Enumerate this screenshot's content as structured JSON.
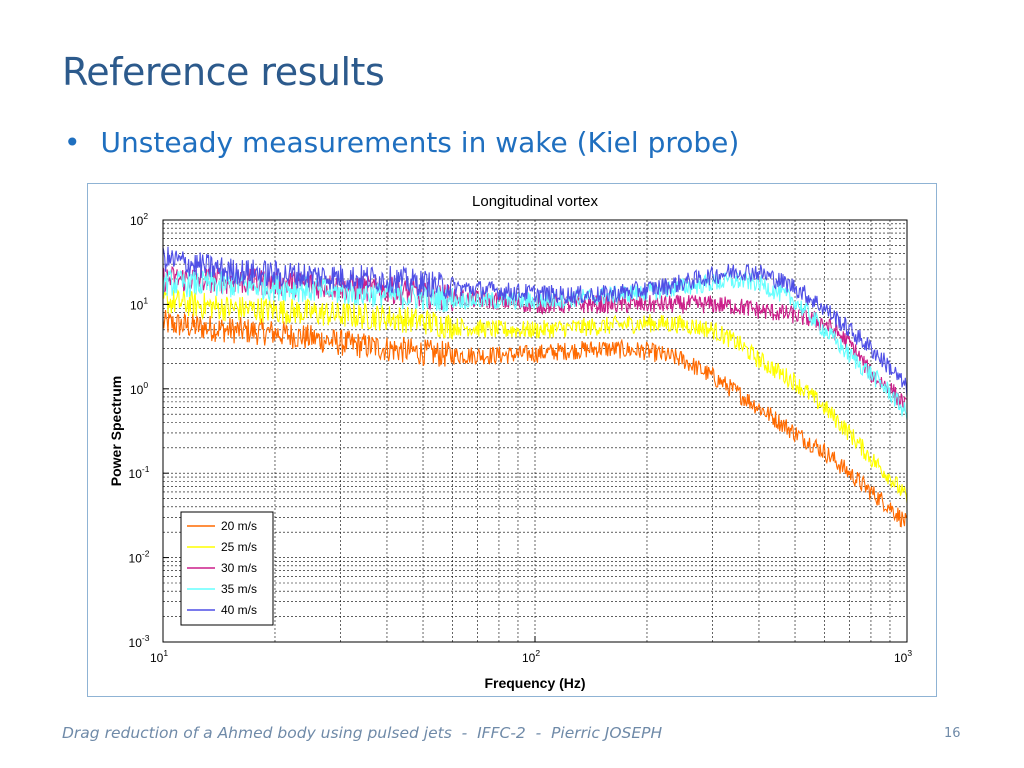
{
  "slide": {
    "title": "Reference results",
    "bullet": "Unsteady measurements in wake (Kiel probe)",
    "footer": "Drag reduction of a Ahmed body using pulsed jets  -  IFFC-2  -  Pierric JOSEPH",
    "page_number": "16"
  },
  "chart_data": {
    "type": "line",
    "title": "Longitudinal vortex",
    "xlabel": "Frequency (Hz)",
    "ylabel": "Power Spectrum",
    "xscale": "log",
    "yscale": "log",
    "xlim": [
      10,
      1000
    ],
    "ylim": [
      0.001,
      100
    ],
    "x_ticks": [
      {
        "base": "10",
        "exp": "1"
      },
      {
        "base": "10",
        "exp": "2"
      },
      {
        "base": "10",
        "exp": "3"
      }
    ],
    "y_ticks": [
      {
        "base": "10",
        "exp": "2"
      },
      {
        "base": "10",
        "exp": "1"
      },
      {
        "base": "10",
        "exp": "0"
      },
      {
        "base": "10",
        "exp": "-1"
      },
      {
        "base": "10",
        "exp": "-2"
      },
      {
        "base": "10",
        "exp": "-3"
      }
    ],
    "grid": true,
    "legend_position": "bottom-left",
    "x": [
      10,
      12,
      15,
      20,
      25,
      30,
      40,
      50,
      60,
      80,
      100,
      120,
      150,
      200,
      250,
      300,
      350,
      400,
      500,
      600,
      700,
      800,
      900,
      1000
    ],
    "series": [
      {
        "name": "20 m/s",
        "color": "#ff6a00",
        "values": [
          6,
          5.5,
          5,
          4.6,
          4,
          3.5,
          3,
          2.7,
          2.5,
          2.5,
          2.6,
          2.8,
          3,
          2.8,
          2.2,
          1.4,
          0.9,
          0.6,
          0.3,
          0.18,
          0.1,
          0.06,
          0.04,
          0.025
        ]
      },
      {
        "name": "25 m/s",
        "color": "#ffff00",
        "values": [
          11,
          10,
          9,
          8.5,
          8,
          7.5,
          7,
          6.3,
          5.5,
          5,
          5,
          5.2,
          5.5,
          6,
          5.8,
          5,
          3.5,
          2.2,
          1.2,
          0.6,
          0.3,
          0.15,
          0.09,
          0.05
        ]
      },
      {
        "name": "30 m/s",
        "color": "#cc1f8a",
        "values": [
          20,
          20,
          19,
          18,
          17,
          16,
          15,
          13,
          12,
          11,
          10,
          10,
          10,
          10,
          10,
          10,
          9.5,
          8.5,
          7.5,
          6,
          3.5,
          1.5,
          1,
          0.6
        ]
      },
      {
        "name": "35 m/s",
        "color": "#66ffff",
        "values": [
          18,
          17.5,
          17,
          16,
          15,
          14,
          13,
          12,
          11.5,
          11,
          11,
          11.5,
          12.5,
          14,
          16,
          18,
          19,
          18,
          11,
          5,
          2.5,
          1.5,
          0.9,
          0.5
        ]
      },
      {
        "name": "40 m/s",
        "color": "#4f4fe6",
        "values": [
          35,
          30,
          25,
          23,
          22,
          21,
          20,
          18,
          16,
          14.5,
          13.5,
          13,
          13,
          15,
          18,
          22,
          25,
          24,
          16,
          9,
          5,
          3,
          1.8,
          1
        ]
      }
    ]
  }
}
